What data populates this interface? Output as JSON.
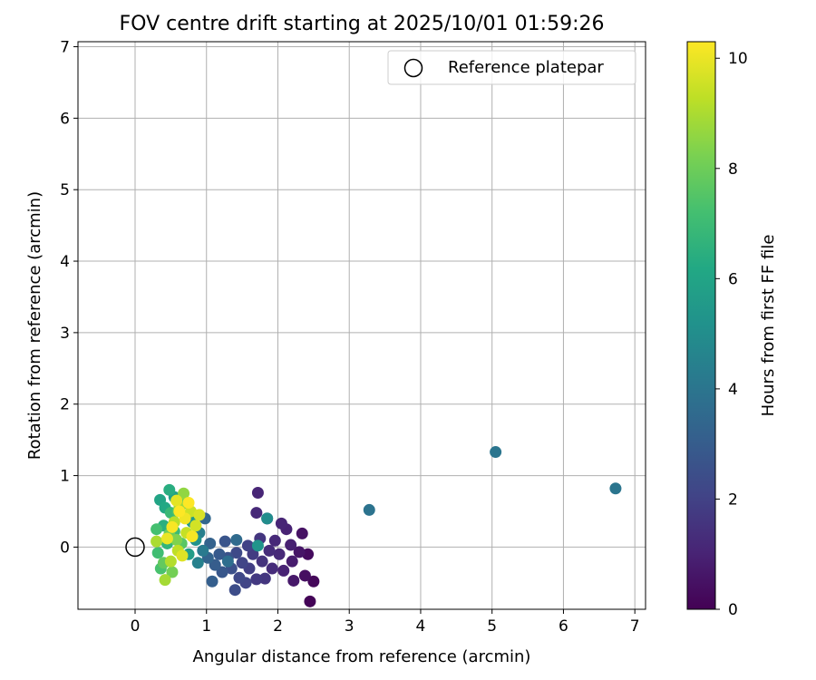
{
  "chart_data": {
    "type": "scatter",
    "title": "FOV centre drift starting at 2025/10/01 01:59:26",
    "xlabel": "Angular distance from reference (arcmin)",
    "ylabel": "Rotation from reference (arcmin)",
    "xlim": [
      -0.8,
      7.15
    ],
    "ylim": [
      -0.87,
      7.07
    ],
    "xticks": [
      0,
      1,
      2,
      3,
      4,
      5,
      6,
      7
    ],
    "yticks": [
      0,
      1,
      2,
      3,
      4,
      5,
      6,
      7
    ],
    "grid": true,
    "legend": {
      "position": "top-right",
      "entries": [
        "Reference platepar"
      ]
    },
    "reference_point": {
      "x": 0,
      "y": 0
    },
    "colorbar": {
      "label": "Hours from first FF file",
      "range": [
        0,
        10.3
      ],
      "ticks": [
        0,
        2,
        4,
        6,
        8,
        10
      ],
      "colormap": "viridis"
    },
    "points": [
      {
        "x": 2.45,
        "y": -0.76,
        "c": 0.1
      },
      {
        "x": 2.5,
        "y": -0.48,
        "c": 0.2
      },
      {
        "x": 2.42,
        "y": -0.1,
        "c": 0.3
      },
      {
        "x": 2.38,
        "y": -0.4,
        "c": 0.4
      },
      {
        "x": 2.34,
        "y": 0.19,
        "c": 0.5
      },
      {
        "x": 2.3,
        "y": -0.07,
        "c": 0.6
      },
      {
        "x": 2.22,
        "y": -0.47,
        "c": 0.7
      },
      {
        "x": 2.2,
        "y": -0.2,
        "c": 0.8
      },
      {
        "x": 2.18,
        "y": 0.03,
        "c": 0.9
      },
      {
        "x": 2.12,
        "y": 0.25,
        "c": 1.0
      },
      {
        "x": 2.08,
        "y": -0.33,
        "c": 1.0
      },
      {
        "x": 2.05,
        "y": 0.33,
        "c": 1.1
      },
      {
        "x": 2.02,
        "y": -0.1,
        "c": 1.2
      },
      {
        "x": 1.96,
        "y": 0.09,
        "c": 1.2
      },
      {
        "x": 1.92,
        "y": -0.3,
        "c": 1.3
      },
      {
        "x": 1.88,
        "y": -0.05,
        "c": 1.3
      },
      {
        "x": 1.85,
        "y": 0.4,
        "c": 1.4
      },
      {
        "x": 1.72,
        "y": 0.76,
        "c": 1.1
      },
      {
        "x": 1.7,
        "y": 0.48,
        "c": 1.2
      },
      {
        "x": 1.78,
        "y": -0.2,
        "c": 1.5
      },
      {
        "x": 1.82,
        "y": -0.44,
        "c": 1.6
      },
      {
        "x": 1.75,
        "y": 0.12,
        "c": 1.6
      },
      {
        "x": 1.7,
        "y": -0.45,
        "c": 1.7
      },
      {
        "x": 1.65,
        "y": -0.1,
        "c": 1.8
      },
      {
        "x": 1.6,
        "y": -0.3,
        "c": 1.9
      },
      {
        "x": 1.58,
        "y": 0.02,
        "c": 2.0
      },
      {
        "x": 1.55,
        "y": -0.5,
        "c": 2.1
      },
      {
        "x": 1.5,
        "y": -0.22,
        "c": 2.1
      },
      {
        "x": 1.46,
        "y": -0.43,
        "c": 2.2
      },
      {
        "x": 1.42,
        "y": -0.08,
        "c": 2.3
      },
      {
        "x": 1.4,
        "y": -0.6,
        "c": 2.4
      },
      {
        "x": 1.35,
        "y": -0.3,
        "c": 2.5
      },
      {
        "x": 1.3,
        "y": -0.15,
        "c": 2.6
      },
      {
        "x": 1.26,
        "y": 0.08,
        "c": 2.7
      },
      {
        "x": 1.22,
        "y": -0.35,
        "c": 2.8
      },
      {
        "x": 1.18,
        "y": -0.1,
        "c": 2.9
      },
      {
        "x": 1.12,
        "y": -0.25,
        "c": 3.0
      },
      {
        "x": 1.08,
        "y": -0.48,
        "c": 3.1
      },
      {
        "x": 1.05,
        "y": 0.05,
        "c": 3.2
      },
      {
        "x": 1.02,
        "y": -0.15,
        "c": 3.3
      },
      {
        "x": 0.98,
        "y": 0.4,
        "c": 3.4
      },
      {
        "x": 1.42,
        "y": 0.1,
        "c": 3.6
      },
      {
        "x": 1.3,
        "y": -0.2,
        "c": 3.7
      },
      {
        "x": 3.28,
        "y": 0.52,
        "c": 3.9
      },
      {
        "x": 5.05,
        "y": 1.33,
        "c": 4.0
      },
      {
        "x": 6.73,
        "y": 0.82,
        "c": 4.0
      },
      {
        "x": 0.95,
        "y": -0.05,
        "c": 4.2
      },
      {
        "x": 0.9,
        "y": 0.2,
        "c": 4.4
      },
      {
        "x": 0.88,
        "y": -0.22,
        "c": 4.5
      },
      {
        "x": 1.85,
        "y": 0.4,
        "c": 5.0
      },
      {
        "x": 1.72,
        "y": 0.02,
        "c": 5.3
      },
      {
        "x": 0.85,
        "y": 0.1,
        "c": 5.2
      },
      {
        "x": 0.8,
        "y": 0.35,
        "c": 5.5
      },
      {
        "x": 0.75,
        "y": -0.1,
        "c": 5.7
      },
      {
        "x": 0.55,
        "y": 0.7,
        "c": 5.8
      },
      {
        "x": 0.35,
        "y": 0.66,
        "c": 6.0
      },
      {
        "x": 0.42,
        "y": 0.55,
        "c": 6.2
      },
      {
        "x": 0.48,
        "y": 0.8,
        "c": 6.4
      },
      {
        "x": 0.4,
        "y": 0.3,
        "c": 6.5
      },
      {
        "x": 0.45,
        "y": 0.05,
        "c": 6.7
      },
      {
        "x": 0.5,
        "y": 0.48,
        "c": 6.9
      },
      {
        "x": 0.55,
        "y": 0.22,
        "c": 7.0
      },
      {
        "x": 0.32,
        "y": -0.08,
        "c": 7.1
      },
      {
        "x": 0.3,
        "y": 0.25,
        "c": 7.2
      },
      {
        "x": 0.36,
        "y": -0.3,
        "c": 7.3
      },
      {
        "x": 0.6,
        "y": 0.5,
        "c": 7.4
      },
      {
        "x": 0.65,
        "y": 0.05,
        "c": 7.6
      },
      {
        "x": 0.7,
        "y": 0.62,
        "c": 7.7
      },
      {
        "x": 0.4,
        "y": -0.22,
        "c": 7.8
      },
      {
        "x": 0.48,
        "y": 0.18,
        "c": 8.0
      },
      {
        "x": 0.52,
        "y": -0.35,
        "c": 8.1
      },
      {
        "x": 0.58,
        "y": 0.1,
        "c": 8.3
      },
      {
        "x": 0.68,
        "y": 0.75,
        "c": 8.6
      },
      {
        "x": 0.62,
        "y": 0.55,
        "c": 8.8
      },
      {
        "x": 0.42,
        "y": -0.46,
        "c": 8.9
      },
      {
        "x": 0.3,
        "y": 0.08,
        "c": 9.0
      },
      {
        "x": 0.5,
        "y": -0.2,
        "c": 9.1
      },
      {
        "x": 0.55,
        "y": 0.35,
        "c": 9.2
      },
      {
        "x": 0.6,
        "y": -0.05,
        "c": 9.3
      },
      {
        "x": 0.72,
        "y": 0.2,
        "c": 9.4
      },
      {
        "x": 0.78,
        "y": 0.5,
        "c": 9.5
      },
      {
        "x": 0.85,
        "y": 0.3,
        "c": 9.6
      },
      {
        "x": 0.9,
        "y": 0.45,
        "c": 9.7
      },
      {
        "x": 0.66,
        "y": -0.12,
        "c": 9.8
      },
      {
        "x": 0.58,
        "y": 0.65,
        "c": 9.9
      },
      {
        "x": 0.45,
        "y": 0.12,
        "c": 10.0
      },
      {
        "x": 0.7,
        "y": 0.4,
        "c": 10.1
      },
      {
        "x": 0.52,
        "y": 0.28,
        "c": 10.2
      },
      {
        "x": 0.8,
        "y": 0.15,
        "c": 10.2
      },
      {
        "x": 0.62,
        "y": 0.5,
        "c": 10.3
      },
      {
        "x": 0.75,
        "y": 0.62,
        "c": 10.3
      }
    ]
  }
}
